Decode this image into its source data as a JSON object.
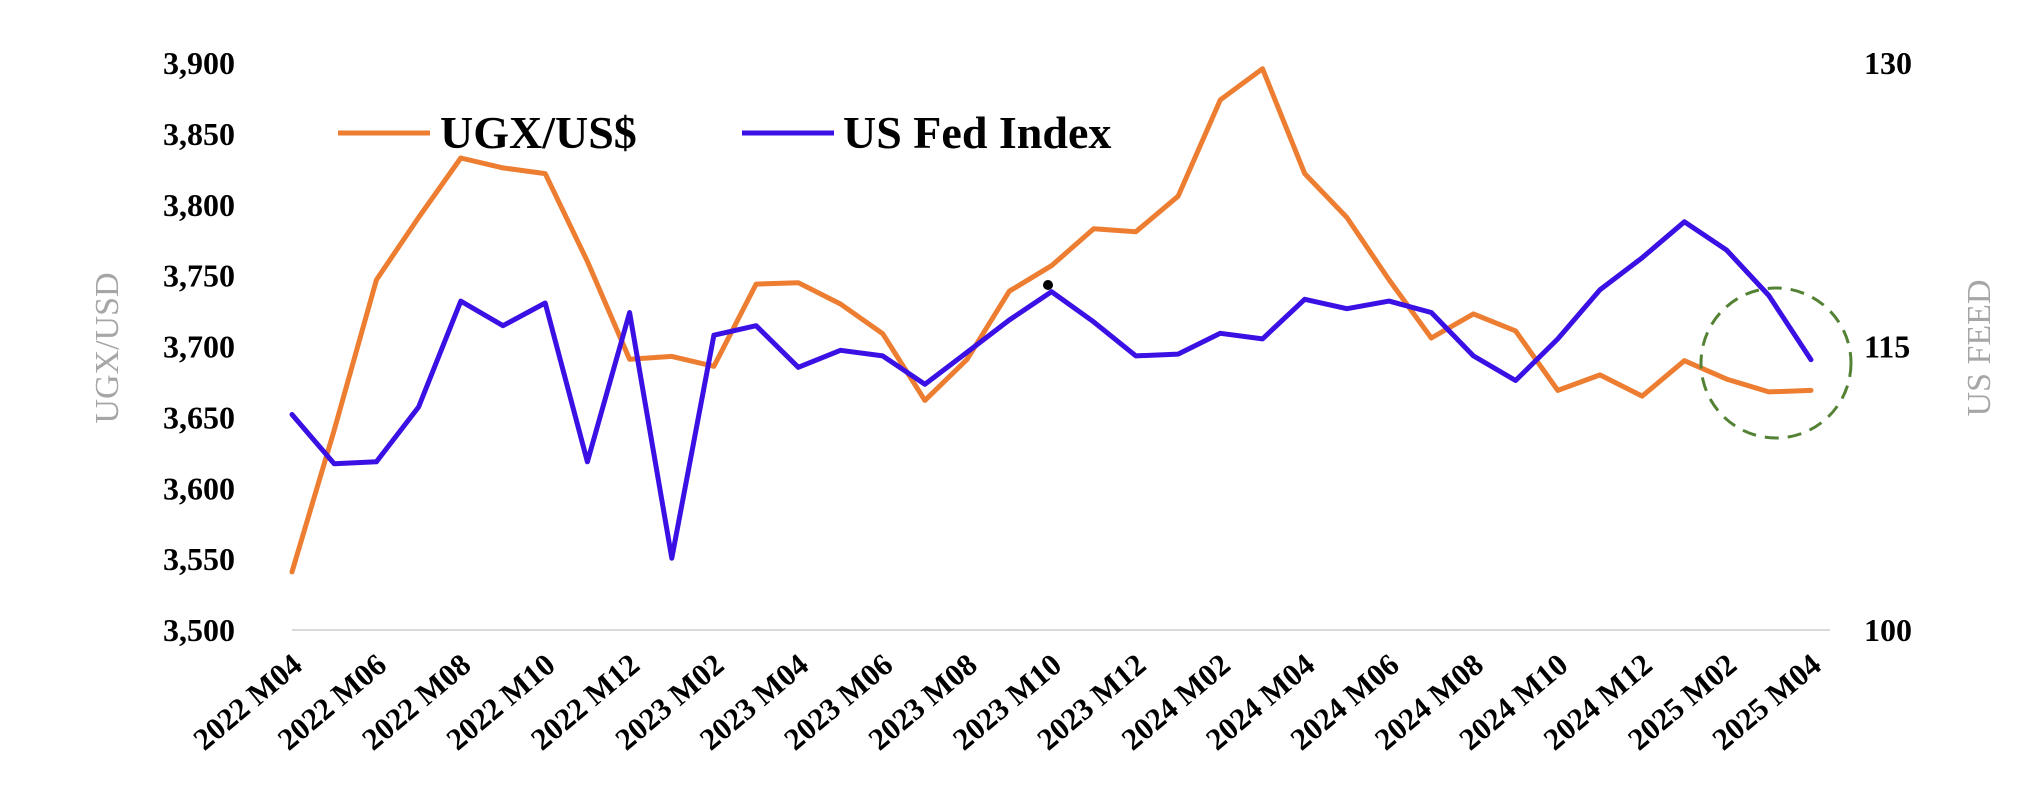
{
  "chart_data": {
    "type": "line",
    "title": "",
    "y_left_label": "UGX/USD",
    "y_right_label": "US FEED",
    "y_left_lim": [
      3500,
      3900
    ],
    "y_left_ticks": [
      "3,500",
      "3,550",
      "3,600",
      "3,650",
      "3,700",
      "3,750",
      "3,800",
      "3,850",
      "3,900"
    ],
    "y_right_lim": [
      100,
      130
    ],
    "y_right_ticks": [
      "100",
      "115",
      "130"
    ],
    "x_tick_labels": [
      "2022 M04",
      "2022 M06",
      "2022 M08",
      "2022 M10",
      "2022 M12",
      "2023 M02",
      "2023 M04",
      "2023 M06",
      "2023 M08",
      "2023 M10",
      "2023 M12",
      "2024 M02",
      "2024 M04",
      "2024 M06",
      "2024 M08",
      "2024 M10",
      "2024 M12",
      "2025 M02",
      "2025 M04"
    ],
    "x": [
      "2022 M04",
      "2022 M05",
      "2022 M06",
      "2022 M07",
      "2022 M08",
      "2022 M09",
      "2022 M10",
      "2022 M11",
      "2022 M12",
      "2023 M01",
      "2023 M02",
      "2023 M03",
      "2023 M04",
      "2023 M05",
      "2023 M06",
      "2023 M07",
      "2023 M08",
      "2023 M09",
      "2023 M10",
      "2023 M11",
      "2023 M12",
      "2024 M01",
      "2024 M02",
      "2024 M03",
      "2024 M04",
      "2024 M05",
      "2024 M06",
      "2024 M07",
      "2024 M08",
      "2024 M09",
      "2024 M10",
      "2024 M11",
      "2024 M12",
      "2025 M01",
      "2025 M02",
      "2025 M03",
      "2025 M04"
    ],
    "series": [
      {
        "name": "UGX/US$",
        "axis": "left",
        "color": "#ed7d31",
        "values": [
          3541,
          3641,
          3747,
          3791,
          3833,
          3826,
          3822,
          3760,
          3691,
          3693,
          3686,
          3744,
          3745,
          3730,
          3709,
          3662,
          3691,
          3739,
          3757,
          3783,
          3781,
          3806,
          3874,
          3896,
          3822,
          3791,
          3747,
          3706,
          3723,
          3711,
          3669,
          3680,
          3665,
          3690,
          3677,
          3668,
          3669
        ]
      },
      {
        "name": "US Fed Index",
        "axis": "right",
        "color": "#3a10e5",
        "values": [
          111.4,
          108.8,
          108.9,
          111.8,
          117.4,
          116.1,
          117.3,
          108.9,
          116.8,
          103.8,
          115.6,
          116.1,
          113.9,
          114.8,
          114.5,
          113.0,
          114.7,
          116.4,
          117.9,
          116.3,
          114.5,
          114.6,
          115.7,
          115.4,
          117.5,
          117.0,
          117.4,
          116.8,
          114.5,
          113.2,
          115.4,
          118.0,
          119.7,
          121.6,
          120.1,
          117.7,
          114.3
        ]
      }
    ],
    "annotation": "dashed green circle around the final months",
    "legend_position": "top-left",
    "grid": false
  }
}
